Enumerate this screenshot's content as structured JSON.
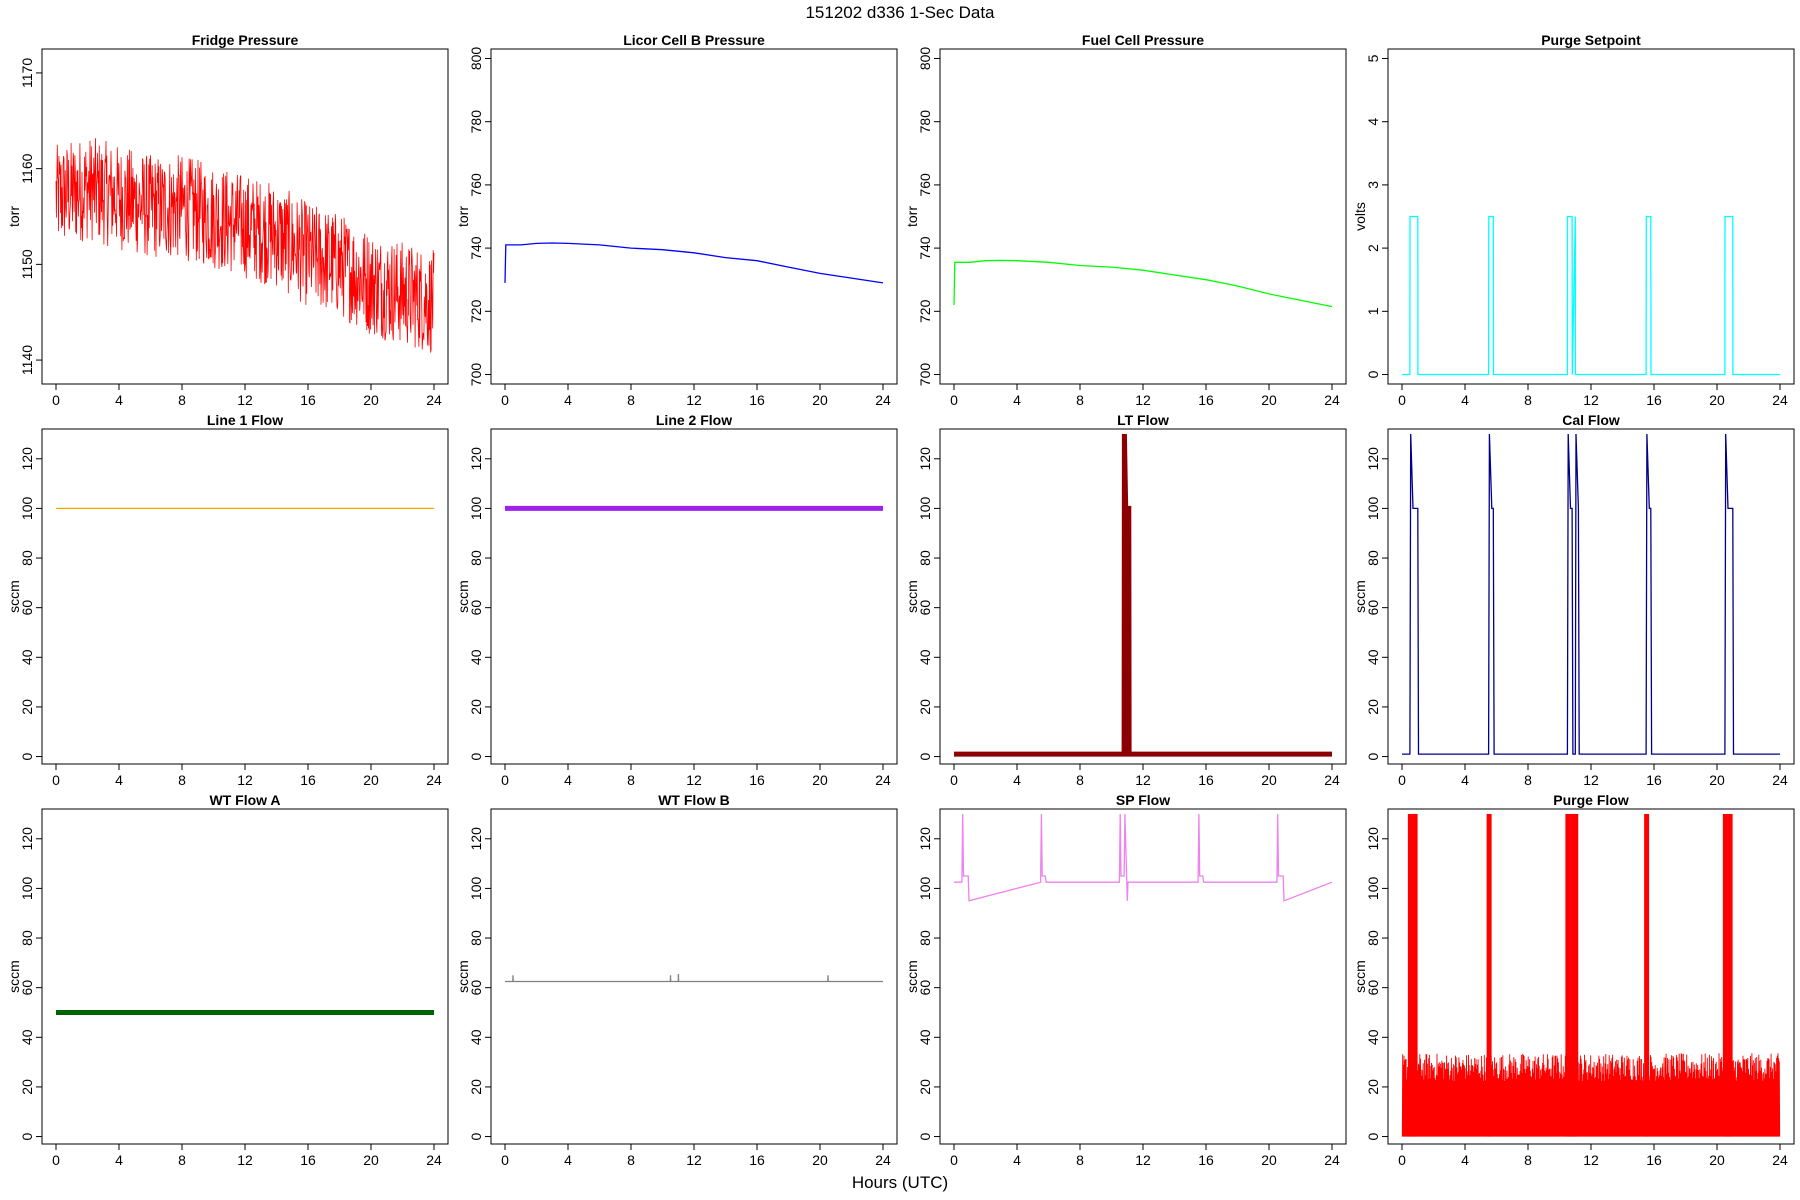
{
  "figure": {
    "title": "151202   d336   1-Sec Data",
    "xlabel": "Hours (UTC)"
  },
  "chart_data": [
    {
      "type": "line",
      "title": "Fridge Pressure",
      "ylabel": "torr",
      "xlabel": "",
      "color": "#ff0000",
      "xlim": [
        0,
        24
      ],
      "ylim": [
        1137.5,
        1172.5
      ],
      "xticks": [
        0,
        4,
        8,
        12,
        16,
        20,
        24
      ],
      "yticks": [
        1140,
        1150,
        1160,
        1170
      ],
      "style": "noisy",
      "series": [
        {
          "x": [
            0,
            2,
            4,
            6,
            8,
            10,
            12,
            14,
            16,
            18,
            20,
            22,
            24
          ],
          "y": [
            1157,
            1158,
            1157,
            1156,
            1156,
            1155,
            1154,
            1153,
            1151,
            1150,
            1148,
            1147,
            1146
          ],
          "noise": 5.5
        }
      ]
    },
    {
      "type": "line",
      "title": "Licor Cell B Pressure",
      "ylabel": "torr",
      "xlabel": "",
      "color": "#0000ff",
      "xlim": [
        0,
        24
      ],
      "ylim": [
        697,
        803
      ],
      "xticks": [
        0,
        4,
        8,
        12,
        16,
        20,
        24
      ],
      "yticks": [
        700,
        720,
        740,
        760,
        780,
        800
      ],
      "style": "line",
      "series": [
        {
          "x": [
            0,
            0.05,
            1,
            2,
            3,
            4,
            6,
            8,
            10,
            12,
            14,
            16,
            18,
            20,
            22,
            24
          ],
          "y": [
            729,
            741,
            741,
            741.5,
            741.6,
            741.5,
            741,
            740,
            739.5,
            738.5,
            737,
            736,
            734,
            732,
            730.5,
            729
          ]
        }
      ]
    },
    {
      "type": "line",
      "title": "Fuel Cell Pressure",
      "ylabel": "torr",
      "xlabel": "",
      "color": "#00ff00",
      "xlim": [
        0,
        24
      ],
      "ylim": [
        697,
        803
      ],
      "xticks": [
        0,
        4,
        8,
        12,
        16,
        20,
        24
      ],
      "yticks": [
        700,
        720,
        740,
        760,
        780,
        800
      ],
      "style": "line",
      "series": [
        {
          "x": [
            0,
            0.05,
            1,
            2,
            3,
            4,
            6,
            8,
            10,
            12,
            14,
            16,
            18,
            20,
            22,
            24
          ],
          "y": [
            722,
            735.5,
            735.5,
            736,
            736.1,
            736,
            735.5,
            734.5,
            734,
            733,
            731.5,
            730,
            728,
            725.5,
            723.5,
            721.5
          ]
        }
      ]
    },
    {
      "type": "line",
      "title": "Purge Setpoint",
      "ylabel": "volts",
      "xlabel": "",
      "color": "#00ffff",
      "xlim": [
        0,
        24
      ],
      "ylim": [
        -0.15,
        5.15
      ],
      "xticks": [
        0,
        4,
        8,
        12,
        16,
        20,
        24
      ],
      "yticks": [
        0,
        1,
        2,
        3,
        4,
        5
      ],
      "style": "pulse",
      "series": [
        {
          "x": [
            0,
            0.5,
            0.51,
            1.0,
            1.01,
            5.5,
            5.51,
            5.8,
            5.81,
            10.5,
            10.51,
            10.8,
            10.81,
            11.0,
            11.01,
            15.5,
            15.51,
            15.8,
            15.81,
            20.5,
            20.51,
            21.0,
            21.01,
            24
          ],
          "y": [
            0,
            0,
            2.5,
            2.5,
            0,
            0,
            2.5,
            2.5,
            0,
            0,
            2.5,
            2.5,
            0,
            2.5,
            0,
            0,
            2.5,
            2.5,
            0,
            0,
            2.5,
            2.5,
            0,
            0
          ]
        }
      ]
    },
    {
      "type": "line",
      "title": "Line 1 Flow",
      "ylabel": "sccm",
      "xlabel": "",
      "color": "#ffa500",
      "xlim": [
        0,
        24
      ],
      "ylim": [
        -3,
        132
      ],
      "xticks": [
        0,
        4,
        8,
        12,
        16,
        20,
        24
      ],
      "yticks": [
        0,
        20,
        40,
        60,
        80,
        100,
        120
      ],
      "style": "line",
      "series": [
        {
          "x": [
            0,
            24
          ],
          "y": [
            100,
            100
          ]
        }
      ]
    },
    {
      "type": "line",
      "title": "Line 2 Flow",
      "ylabel": "sccm",
      "xlabel": "",
      "color": "#a020f0",
      "xlim": [
        0,
        24
      ],
      "ylim": [
        -3,
        132
      ],
      "xticks": [
        0,
        4,
        8,
        12,
        16,
        20,
        24
      ],
      "yticks": [
        0,
        20,
        40,
        60,
        80,
        100,
        120
      ],
      "style": "thick",
      "series": [
        {
          "x": [
            0,
            24
          ],
          "y": [
            100,
            100
          ]
        }
      ]
    },
    {
      "type": "line",
      "title": "LT Flow",
      "ylabel": "sccm",
      "xlabel": "",
      "color": "#8b0000",
      "xlim": [
        0,
        24
      ],
      "ylim": [
        -3,
        132
      ],
      "xticks": [
        0,
        4,
        8,
        12,
        16,
        20,
        24
      ],
      "yticks": [
        0,
        20,
        40,
        60,
        80,
        100,
        120
      ],
      "style": "thick",
      "series": [
        {
          "x": [
            0,
            10.8,
            10.82,
            10.9,
            11.0,
            11.02,
            11.1,
            11.12,
            24
          ],
          "y": [
            1,
            1,
            130,
            100,
            100,
            100,
            100,
            1,
            1
          ]
        }
      ]
    },
    {
      "type": "line",
      "title": "Cal Flow",
      "ylabel": "sccm",
      "xlabel": "",
      "color": "#00008b",
      "xlim": [
        0,
        24
      ],
      "ylim": [
        -3,
        132
      ],
      "xticks": [
        0,
        4,
        8,
        12,
        16,
        20,
        24
      ],
      "yticks": [
        0,
        20,
        40,
        60,
        80,
        100,
        120
      ],
      "style": "line",
      "series": [
        {
          "x": [
            0,
            0.5,
            0.55,
            0.7,
            1.0,
            1.05,
            5.5,
            5.55,
            5.7,
            5.8,
            5.85,
            10.5,
            10.55,
            10.7,
            10.8,
            10.85,
            11.0,
            11.05,
            11.2,
            11.25,
            15.5,
            15.55,
            15.7,
            15.8,
            15.85,
            20.5,
            20.55,
            20.7,
            21.0,
            21.05,
            24
          ],
          "y": [
            1,
            1,
            130,
            100,
            100,
            1,
            1,
            130,
            100,
            100,
            1,
            1,
            130,
            100,
            100,
            1,
            1,
            130,
            100,
            1,
            1,
            130,
            100,
            100,
            1,
            1,
            130,
            100,
            100,
            1,
            1
          ]
        }
      ]
    },
    {
      "type": "line",
      "title": "WT Flow A",
      "ylabel": "sccm",
      "xlabel": "",
      "color": "#006400",
      "xlim": [
        0,
        24
      ],
      "ylim": [
        -3,
        132
      ],
      "xticks": [
        0,
        4,
        8,
        12,
        16,
        20,
        24
      ],
      "yticks": [
        0,
        20,
        40,
        60,
        80,
        100,
        120
      ],
      "style": "thick",
      "series": [
        {
          "x": [
            0,
            24
          ],
          "y": [
            50,
            50
          ]
        }
      ]
    },
    {
      "type": "line",
      "title": "WT Flow B",
      "ylabel": "sccm",
      "xlabel": "",
      "color": "#7f7f7f",
      "xlim": [
        0,
        24
      ],
      "ylim": [
        -3,
        132
      ],
      "xticks": [
        0,
        4,
        8,
        12,
        16,
        20,
        24
      ],
      "yticks": [
        0,
        20,
        40,
        60,
        80,
        100,
        120
      ],
      "style": "line",
      "series": [
        {
          "x": [
            0,
            0.5,
            0.51,
            0.52,
            10.5,
            10.51,
            10.52,
            11.0,
            11.01,
            11.02,
            20.5,
            20.51,
            20.52,
            24
          ],
          "y": [
            62.5,
            62.5,
            65,
            62.5,
            62.5,
            65,
            62.5,
            62.5,
            65.5,
            62.5,
            62.5,
            65,
            62.5,
            62.5
          ]
        }
      ]
    },
    {
      "type": "line",
      "title": "SP Flow",
      "ylabel": "sccm",
      "xlabel": "",
      "color": "#ee82ee",
      "xlim": [
        0,
        24
      ],
      "ylim": [
        -3,
        132
      ],
      "xticks": [
        0,
        4,
        8,
        12,
        16,
        20,
        24
      ],
      "yticks": [
        0,
        20,
        40,
        60,
        80,
        100,
        120
      ],
      "style": "line",
      "series": [
        {
          "x": [
            0,
            0.5,
            0.55,
            0.6,
            0.9,
            0.95,
            5.5,
            5.55,
            5.6,
            5.8,
            5.85,
            10.5,
            10.55,
            10.6,
            10.8,
            10.85,
            11.0,
            11.05,
            11.1,
            15.5,
            15.55,
            15.6,
            15.8,
            15.85,
            20.5,
            20.55,
            20.6,
            20.9,
            20.95,
            24
          ],
          "y": [
            102.5,
            102.5,
            130,
            105,
            105,
            95,
            102.5,
            130,
            105,
            105,
            102.5,
            102.5,
            130,
            105,
            105,
            130,
            95,
            102.5,
            102.5,
            102.5,
            130,
            105,
            105,
            102.5,
            102.5,
            130,
            105,
            105,
            95,
            102.5
          ]
        }
      ]
    },
    {
      "type": "line",
      "title": "Purge Flow",
      "ylabel": "sccm",
      "xlabel": "",
      "color": "#ff0000",
      "xlim": [
        0,
        24
      ],
      "ylim": [
        -3,
        132
      ],
      "xticks": [
        0,
        4,
        8,
        12,
        16,
        20,
        24
      ],
      "yticks": [
        0,
        20,
        40,
        60,
        80,
        100,
        120
      ],
      "style": "purge",
      "series": [
        {
          "x": [
            0,
            24
          ],
          "y": [
            0,
            32
          ],
          "spikes": [
            0.5,
            0.8,
            5.5,
            10.5,
            10.8,
            11.0,
            15.5,
            20.5,
            20.8
          ]
        }
      ]
    }
  ]
}
